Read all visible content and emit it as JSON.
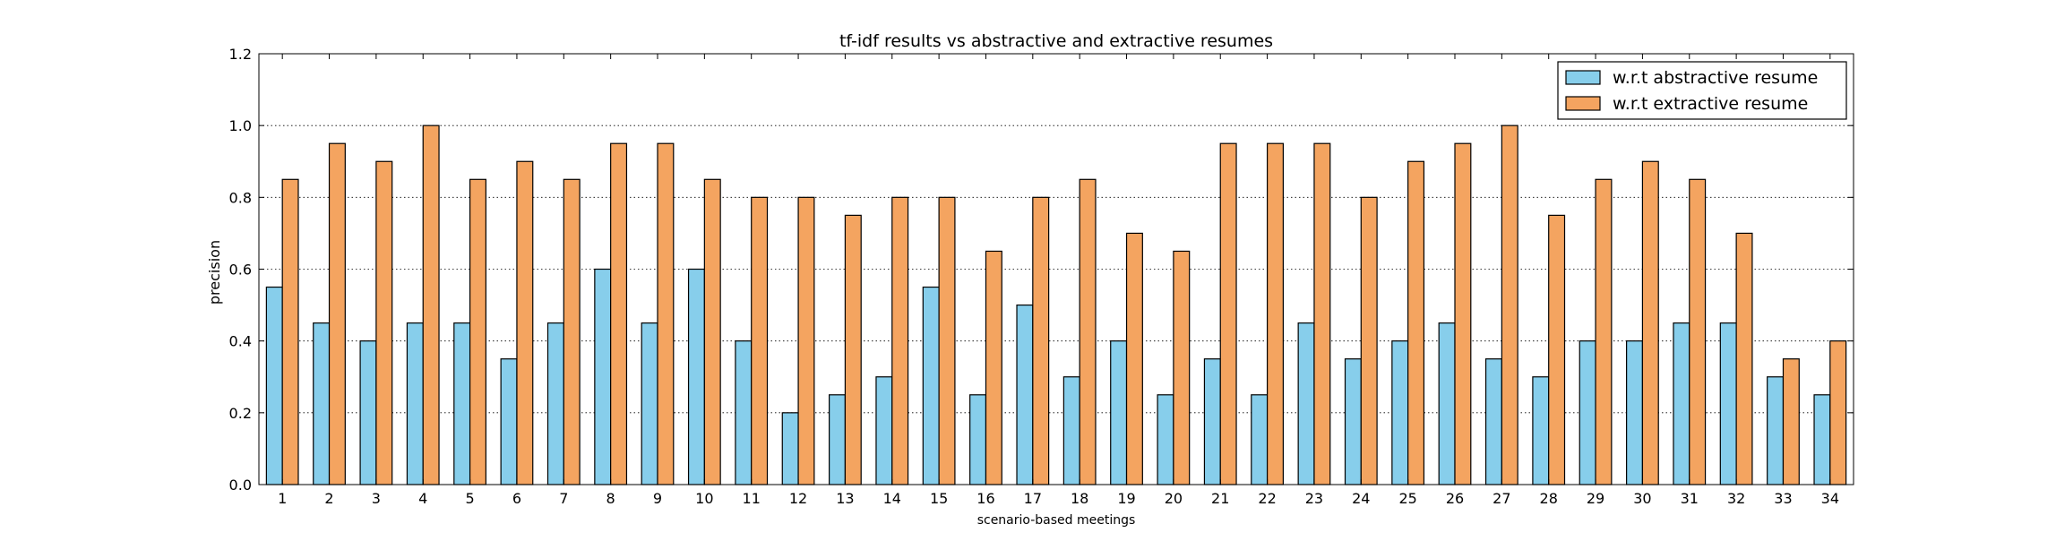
{
  "chart_data": {
    "type": "bar",
    "title": "tf-idf results vs abstractive and extractive resumes",
    "xlabel": "scenario-based meetings",
    "ylabel": "precision",
    "ylim": [
      0,
      1.2
    ],
    "yticks": [
      "0.0",
      "0.2",
      "0.4",
      "0.6",
      "0.8",
      "1.0",
      "1.2"
    ],
    "grid": "horizontal dotted",
    "legend_position": "top-right",
    "categories": [
      "1",
      "2",
      "3",
      "4",
      "5",
      "6",
      "7",
      "8",
      "9",
      "10",
      "11",
      "12",
      "13",
      "14",
      "15",
      "16",
      "17",
      "18",
      "19",
      "20",
      "21",
      "22",
      "23",
      "24",
      "25",
      "26",
      "27",
      "28",
      "29",
      "30",
      "31",
      "32",
      "33",
      "34"
    ],
    "series": [
      {
        "name": "w.r.t abstractive resume",
        "color": "#87ceeb",
        "values": [
          0.55,
          0.45,
          0.4,
          0.45,
          0.45,
          0.35,
          0.45,
          0.6,
          0.45,
          0.6,
          0.4,
          0.2,
          0.25,
          0.3,
          0.55,
          0.25,
          0.5,
          0.3,
          0.4,
          0.25,
          0.35,
          0.25,
          0.45,
          0.35,
          0.4,
          0.45,
          0.35,
          0.3,
          0.4,
          0.4,
          0.45,
          0.45,
          0.3,
          0.25
        ]
      },
      {
        "name": "w.r.t extractive resume",
        "color": "#f4a460",
        "values": [
          0.85,
          0.95,
          0.9,
          1.0,
          0.85,
          0.9,
          0.85,
          0.95,
          0.95,
          0.85,
          0.8,
          0.8,
          0.75,
          0.8,
          0.8,
          0.65,
          0.8,
          0.85,
          0.7,
          0.65,
          0.95,
          0.95,
          0.95,
          0.8,
          0.9,
          0.95,
          1.0,
          0.75,
          0.85,
          0.9,
          0.85,
          0.7,
          0.35,
          0.4
        ]
      }
    ]
  }
}
